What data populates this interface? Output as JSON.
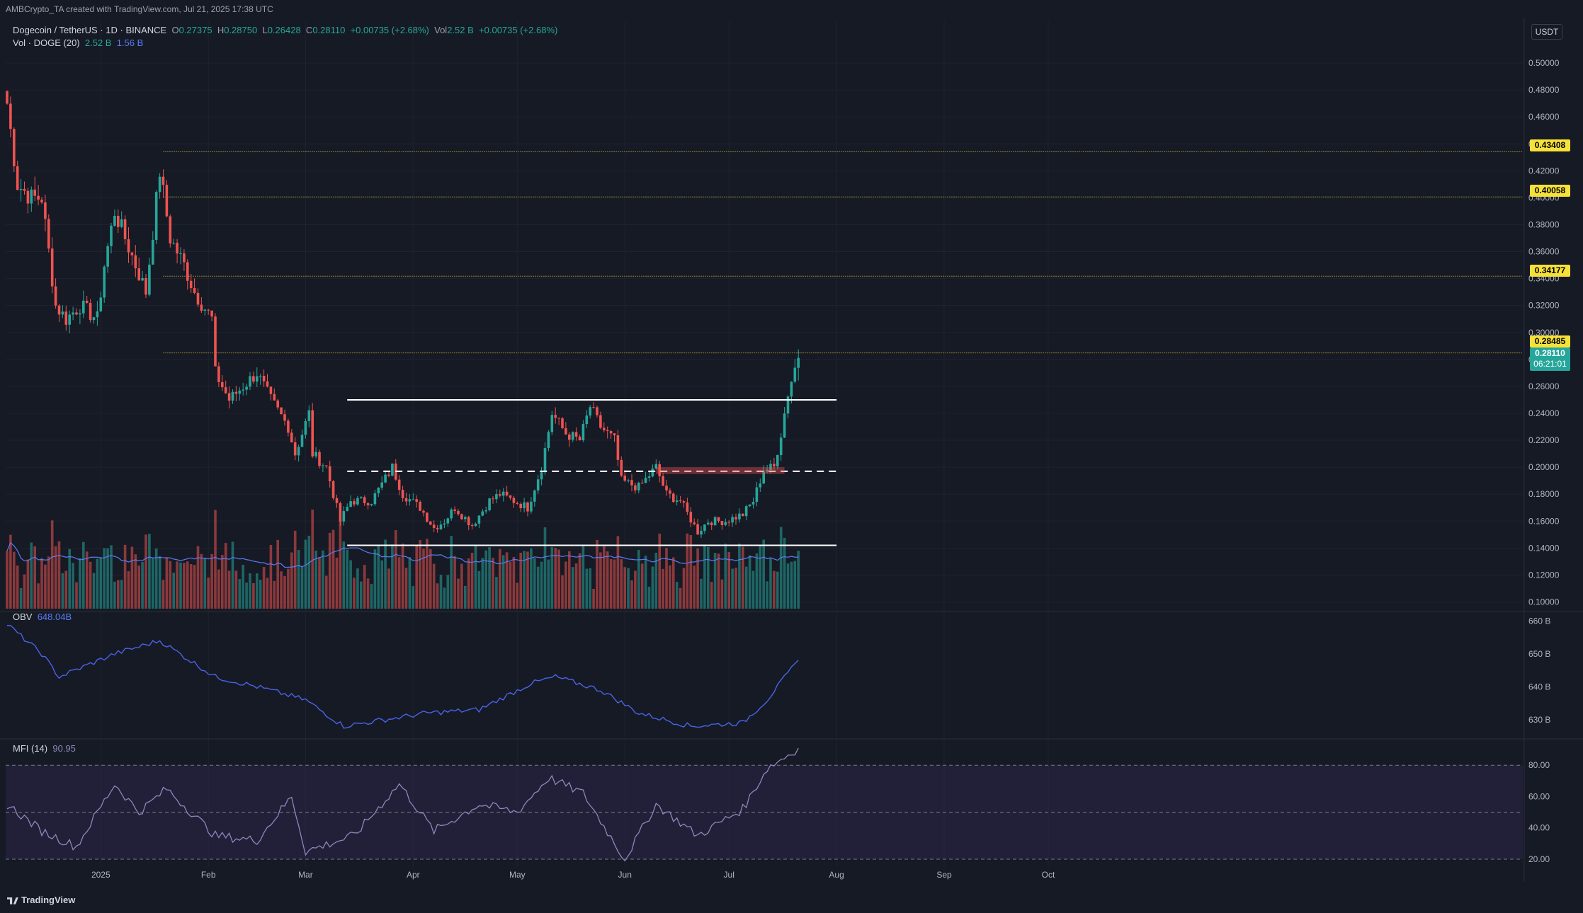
{
  "header": {
    "author_line": "AMBCrypto_TA created with TradingView.com, Jul 21, 2025 17:38 UTC",
    "symbol": "Dogecoin / TetherUS · 1D · BINANCE",
    "ohlc": {
      "o_label": "O",
      "o": "0.27375",
      "h_label": "H",
      "h": "0.28750",
      "l_label": "L",
      "l": "0.26428",
      "c_label": "C",
      "c": "0.28110",
      "change": "+0.00735 (+2.68%)",
      "vol_label": "Vol",
      "vol": "2.52 B",
      "vol_change": "+0.00735 (+2.68%)"
    },
    "volume_legend": {
      "label": "Vol · DOGE (20)",
      "v1": "2.52 B",
      "v2": "1.56 B"
    }
  },
  "currency": "USDT",
  "price_axis_ticks": [
    "0.50000",
    "0.48000",
    "0.46000",
    "0.44000",
    "0.42000",
    "0.40000",
    "0.38000",
    "0.36000",
    "0.34000",
    "0.32000",
    "0.30000",
    "0.28000",
    "0.26000",
    "0.24000",
    "0.22000",
    "0.20000",
    "0.18000",
    "0.16000",
    "0.14000",
    "0.12000",
    "0.10000"
  ],
  "price_labels": [
    {
      "value": "0.43408",
      "color": "#f5e13a",
      "text_color": "#000000"
    },
    {
      "value": "0.40058",
      "color": "#f5e13a",
      "text_color": "#000000"
    },
    {
      "value": "0.34177",
      "color": "#f5e13a",
      "text_color": "#000000"
    },
    {
      "value": "0.28485",
      "color": "#f5e13a",
      "text_color": "#000000"
    }
  ],
  "last_price": {
    "value": "0.28110",
    "countdown": "06:21:01",
    "color": "#26a69a"
  },
  "obv": {
    "label": "OBV",
    "value": "648.04B",
    "ticks": [
      "660 B",
      "650 B",
      "640 B",
      "630 B"
    ]
  },
  "mfi": {
    "label": "MFI (14)",
    "value": "90.95",
    "ticks": [
      "80.00",
      "60.00",
      "40.00",
      "20.00"
    ]
  },
  "x_axis_labels": [
    "2025",
    "Feb",
    "Mar",
    "Apr",
    "May",
    "Jun",
    "Jul",
    "Aug",
    "Sep",
    "Oct"
  ],
  "footer": {
    "brand": "TradingView"
  },
  "colors": {
    "up": "#26a69a",
    "down": "#ef5350",
    "volume_ma": "#5b7cf6",
    "obv_line": "#4a63e8",
    "mfi_line": "#8f86b8",
    "mfi_band": "#2c2548",
    "background": "#161a25",
    "level_line": "#f5e13a"
  },
  "chart_data": {
    "type": "candlestick",
    "symbol": "DOGEUSDT",
    "interval": "1D",
    "ylim": [
      0.095,
      0.51
    ],
    "horizontal_levels": [
      0.43408,
      0.40058,
      0.34177,
      0.28485
    ],
    "range_lines": {
      "top": 0.25,
      "mid": 0.197,
      "bottom": 0.142,
      "start": "2025-03-13",
      "end": "2025-08-01"
    },
    "anchors": [
      {
        "date": "2024-12-05",
        "close": 0.47
      },
      {
        "date": "2024-12-08",
        "close": 0.41
      },
      {
        "date": "2024-12-12",
        "close": 0.4
      },
      {
        "date": "2024-12-15",
        "close": 0.4
      },
      {
        "date": "2024-12-19",
        "close": 0.32
      },
      {
        "date": "2024-12-22",
        "close": 0.31
      },
      {
        "date": "2024-12-26",
        "close": 0.32
      },
      {
        "date": "2024-12-31",
        "close": 0.31
      },
      {
        "date": "2025-01-02",
        "close": 0.35
      },
      {
        "date": "2025-01-05",
        "close": 0.39
      },
      {
        "date": "2025-01-08",
        "close": 0.37
      },
      {
        "date": "2025-01-11",
        "close": 0.35
      },
      {
        "date": "2025-01-14",
        "close": 0.33
      },
      {
        "date": "2025-01-18",
        "close": 0.42
      },
      {
        "date": "2025-01-21",
        "close": 0.37
      },
      {
        "date": "2025-01-25",
        "close": 0.35
      },
      {
        "date": "2025-01-28",
        "close": 0.33
      },
      {
        "date": "2025-02-02",
        "close": 0.31
      },
      {
        "date": "2025-02-03",
        "close": 0.27
      },
      {
        "date": "2025-02-07",
        "close": 0.25
      },
      {
        "date": "2025-02-11",
        "close": 0.26
      },
      {
        "date": "2025-02-15",
        "close": 0.27
      },
      {
        "date": "2025-02-19",
        "close": 0.25
      },
      {
        "date": "2025-02-24",
        "close": 0.23
      },
      {
        "date": "2025-02-26",
        "close": 0.21
      },
      {
        "date": "2025-03-02",
        "close": 0.24
      },
      {
        "date": "2025-03-03",
        "close": 0.21
      },
      {
        "date": "2025-03-07",
        "close": 0.2
      },
      {
        "date": "2025-03-11",
        "close": 0.16
      },
      {
        "date": "2025-03-14",
        "close": 0.175
      },
      {
        "date": "2025-03-20",
        "close": 0.175
      },
      {
        "date": "2025-03-26",
        "close": 0.2
      },
      {
        "date": "2025-03-29",
        "close": 0.18
      },
      {
        "date": "2025-04-03",
        "close": 0.17
      },
      {
        "date": "2025-04-07",
        "close": 0.155
      },
      {
        "date": "2025-04-10",
        "close": 0.16
      },
      {
        "date": "2025-04-13",
        "close": 0.17
      },
      {
        "date": "2025-04-18",
        "close": 0.157
      },
      {
        "date": "2025-04-23",
        "close": 0.175
      },
      {
        "date": "2025-04-26",
        "close": 0.18
      },
      {
        "date": "2025-04-30",
        "close": 0.175
      },
      {
        "date": "2025-05-04",
        "close": 0.17
      },
      {
        "date": "2025-05-08",
        "close": 0.2
      },
      {
        "date": "2025-05-11",
        "close": 0.24
      },
      {
        "date": "2025-05-15",
        "close": 0.225
      },
      {
        "date": "2025-05-19",
        "close": 0.22
      },
      {
        "date": "2025-05-22",
        "close": 0.245
      },
      {
        "date": "2025-05-25",
        "close": 0.23
      },
      {
        "date": "2025-05-29",
        "close": 0.22
      },
      {
        "date": "2025-05-31",
        "close": 0.19
      },
      {
        "date": "2025-06-05",
        "close": 0.185
      },
      {
        "date": "2025-06-10",
        "close": 0.2
      },
      {
        "date": "2025-06-13",
        "close": 0.18
      },
      {
        "date": "2025-06-17",
        "close": 0.175
      },
      {
        "date": "2025-06-22",
        "close": 0.152
      },
      {
        "date": "2025-06-25",
        "close": 0.16
      },
      {
        "date": "2025-06-30",
        "close": 0.16
      },
      {
        "date": "2025-07-05",
        "close": 0.165
      },
      {
        "date": "2025-07-08",
        "close": 0.175
      },
      {
        "date": "2025-07-11",
        "close": 0.198
      },
      {
        "date": "2025-07-14",
        "close": 0.2
      },
      {
        "date": "2025-07-16",
        "close": 0.225
      },
      {
        "date": "2025-07-18",
        "close": 0.255
      },
      {
        "date": "2025-07-20",
        "close": 0.27375
      },
      {
        "date": "2025-07-21",
        "close": 0.2811
      }
    ],
    "last_candle": {
      "date": "2025-07-21",
      "open": 0.27375,
      "high": 0.2875,
      "low": 0.26428,
      "close": 0.2811,
      "volume": "2.52 B"
    },
    "volume_ma_period": 20,
    "obv_anchors": [
      {
        "date": "2024-12-05",
        "value": 659
      },
      {
        "date": "2024-12-15",
        "value": 650
      },
      {
        "date": "2024-12-20",
        "value": 643
      },
      {
        "date": "2025-01-05",
        "value": 650
      },
      {
        "date": "2025-01-18",
        "value": 654
      },
      {
        "date": "2025-02-03",
        "value": 643
      },
      {
        "date": "2025-02-15",
        "value": 640
      },
      {
        "date": "2025-03-01",
        "value": 636
      },
      {
        "date": "2025-03-12",
        "value": 628
      },
      {
        "date": "2025-04-05",
        "value": 632
      },
      {
        "date": "2025-04-20",
        "value": 633
      },
      {
        "date": "2025-05-05",
        "value": 641
      },
      {
        "date": "2025-05-12",
        "value": 643
      },
      {
        "date": "2025-05-25",
        "value": 639
      },
      {
        "date": "2025-06-05",
        "value": 632
      },
      {
        "date": "2025-06-20",
        "value": 628
      },
      {
        "date": "2025-07-05",
        "value": 629
      },
      {
        "date": "2025-07-12",
        "value": 636
      },
      {
        "date": "2025-07-21",
        "value": 648.04
      }
    ],
    "mfi_anchors": [
      {
        "date": "2024-12-05",
        "value": 55
      },
      {
        "date": "2024-12-15",
        "value": 38
      },
      {
        "date": "2024-12-25",
        "value": 28
      },
      {
        "date": "2025-01-05",
        "value": 68
      },
      {
        "date": "2025-01-12",
        "value": 50
      },
      {
        "date": "2025-01-20",
        "value": 65
      },
      {
        "date": "2025-02-03",
        "value": 35
      },
      {
        "date": "2025-02-15",
        "value": 32
      },
      {
        "date": "2025-02-25",
        "value": 60
      },
      {
        "date": "2025-03-01",
        "value": 25
      },
      {
        "date": "2025-03-15",
        "value": 35
      },
      {
        "date": "2025-03-28",
        "value": 68
      },
      {
        "date": "2025-04-07",
        "value": 38
      },
      {
        "date": "2025-04-20",
        "value": 55
      },
      {
        "date": "2025-05-01",
        "value": 50
      },
      {
        "date": "2025-05-10",
        "value": 72
      },
      {
        "date": "2025-05-20",
        "value": 62
      },
      {
        "date": "2025-06-01",
        "value": 20
      },
      {
        "date": "2025-06-10",
        "value": 55
      },
      {
        "date": "2025-06-22",
        "value": 35
      },
      {
        "date": "2025-07-05",
        "value": 52
      },
      {
        "date": "2025-07-12",
        "value": 78
      },
      {
        "date": "2025-07-21",
        "value": 90.95
      }
    ],
    "x_axis_dates": [
      "2025-01-01",
      "2025-02-01",
      "2025-03-01",
      "2025-04-01",
      "2025-05-01",
      "2025-06-01",
      "2025-07-01",
      "2025-08-01",
      "2025-09-01",
      "2025-10-01"
    ]
  }
}
